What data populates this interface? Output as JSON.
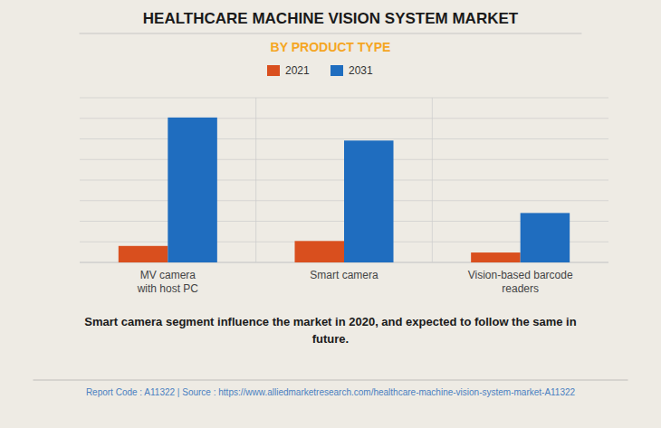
{
  "chart_data": {
    "type": "bar",
    "title": "HEALTHCARE MACHINE VISION SYSTEM MARKET",
    "subtitle": "BY PRODUCT TYPE",
    "categories": [
      "MV camera\nwith host PC",
      "Smart camera",
      "Vision-based barcode\nreaders"
    ],
    "series": [
      {
        "name": "2021",
        "color": "#d94f1e",
        "values": [
          10,
          13,
          6
        ]
      },
      {
        "name": "2031",
        "color": "#1f6dbf",
        "values": [
          88,
          74,
          30
        ]
      }
    ],
    "ylim": [
      0,
      100
    ],
    "yticks": [
      0,
      12.5,
      25,
      37.5,
      50,
      62.5,
      75,
      87.5,
      100
    ],
    "grid": true,
    "legend": "top",
    "tick_labels": "x",
    "annotations": [
      "Smart camera segment influence the market in 2020, and expected to follow the same in",
      "future.",
      "Report Code : A11322  |  Source : https://www.alliedmarketresearch.com/healthcare-machine-vision-system-market-A11322"
    ]
  }
}
